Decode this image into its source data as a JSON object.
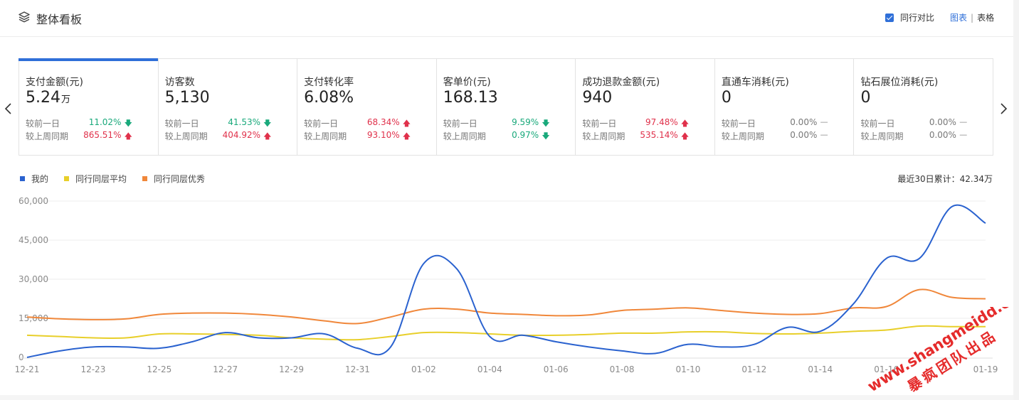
{
  "header": {
    "title": "整体看板",
    "compare_label": "同行对比",
    "view_chart": "图表",
    "view_sep": "|",
    "view_table": "表格"
  },
  "metrics": [
    {
      "name": "支付金额(元)",
      "value": "5.24",
      "unit": "万",
      "row1_label": "较前一日",
      "row1_pct": "11.02%",
      "row1_dir": "down",
      "row2_label": "较上周同期",
      "row2_pct": "865.51%",
      "row2_dir": "up"
    },
    {
      "name": "访客数",
      "value": "5,130",
      "unit": "",
      "row1_label": "较前一日",
      "row1_pct": "41.53%",
      "row1_dir": "down",
      "row2_label": "较上周同期",
      "row2_pct": "404.92%",
      "row2_dir": "up"
    },
    {
      "name": "支付转化率",
      "value": "6.08%",
      "unit": "",
      "row1_label": "较前一日",
      "row1_pct": "68.34%",
      "row1_dir": "up",
      "row2_label": "较上周同期",
      "row2_pct": "93.10%",
      "row2_dir": "up"
    },
    {
      "name": "客单价(元)",
      "value": "168.13",
      "unit": "",
      "row1_label": "较前一日",
      "row1_pct": "9.59%",
      "row1_dir": "down",
      "row2_label": "较上周同期",
      "row2_pct": "0.97%",
      "row2_dir": "down"
    },
    {
      "name": "成功退款金额(元)",
      "value": "940",
      "unit": "",
      "row1_label": "较前一日",
      "row1_pct": "97.48%",
      "row1_dir": "up",
      "row2_label": "较上周同期",
      "row2_pct": "535.14%",
      "row2_dir": "up"
    },
    {
      "name": "直通车消耗(元)",
      "value": "0",
      "unit": "",
      "row1_label": "较前一日",
      "row1_pct": "0.00%",
      "row1_dir": "flat",
      "row2_label": "较上周同期",
      "row2_pct": "0.00%",
      "row2_dir": "flat"
    },
    {
      "name": "钻石展位消耗(元)",
      "value": "0",
      "unit": "",
      "row1_label": "较前一日",
      "row1_pct": "0.00%",
      "row1_dir": "flat",
      "row2_label": "较上周同期",
      "row2_pct": "0.00%",
      "row2_dir": "flat"
    }
  ],
  "indicator_glyphs": {
    "up": "🡅",
    "down": "🡇",
    "flat": "—"
  },
  "colors": {
    "accent": "#2f6fd8",
    "up": "#e0314b",
    "down": "#19a97b",
    "mine": "#2a62cf",
    "peer_avg": "#e8cf2a",
    "peer_top": "#f0873a"
  },
  "summary": "最近30日累计：42.34万",
  "watermark": {
    "line1": "www.shangmeidd.com",
    "line2": "暴疯团队出品"
  },
  "chart_data": {
    "type": "line",
    "title": "",
    "xlabel": "",
    "ylabel": "",
    "ylim": [
      0,
      60000
    ],
    "yticks": [
      0,
      15000,
      30000,
      45000,
      60000
    ],
    "ytick_labels": [
      "0",
      "15,000",
      "30,000",
      "45,000",
      "60,000"
    ],
    "grid": true,
    "legend_position": "top-left",
    "x": [
      "12-21",
      "12-22",
      "12-23",
      "12-24",
      "12-25",
      "12-26",
      "12-27",
      "12-28",
      "12-29",
      "12-30",
      "12-31",
      "01-01",
      "01-02",
      "01-03",
      "01-04",
      "01-05",
      "01-06",
      "01-07",
      "01-08",
      "01-09",
      "01-10",
      "01-11",
      "01-12",
      "01-13",
      "01-14",
      "01-15",
      "01-16",
      "01-17",
      "01-18",
      "01-19"
    ],
    "xtick_labels": [
      "12-21",
      "12-23",
      "12-25",
      "12-27",
      "12-29",
      "12-31",
      "01-02",
      "01-04",
      "01-06",
      "01-08",
      "01-10",
      "01-12",
      "01-14",
      "01-16",
      "01-19"
    ],
    "series": [
      {
        "name": "我的",
        "color": "#2a62cf",
        "values": [
          0,
          2500,
          4000,
          4000,
          3500,
          6000,
          9500,
          7500,
          7500,
          9000,
          3500,
          4000,
          36000,
          34000,
          8000,
          8500,
          6000,
          4000,
          2500,
          1500,
          5000,
          4000,
          5000,
          11500,
          10000,
          20500,
          38000,
          38000,
          58000,
          51500
        ]
      },
      {
        "name": "同行同层平均",
        "color": "#e8cf2a",
        "values": [
          8500,
          8000,
          7500,
          7500,
          9000,
          9000,
          8800,
          8500,
          7500,
          7000,
          6800,
          8000,
          9500,
          9500,
          9000,
          8500,
          8500,
          8800,
          9300,
          9300,
          9800,
          9800,
          9200,
          9000,
          9300,
          10000,
          10500,
          12000,
          11800,
          11800
        ]
      },
      {
        "name": "同行同层优秀",
        "color": "#f0873a",
        "values": [
          15500,
          14800,
          14500,
          14800,
          16500,
          17000,
          17000,
          16500,
          15500,
          14000,
          13000,
          15500,
          18500,
          18500,
          17000,
          16500,
          16000,
          16300,
          18000,
          18500,
          19000,
          18000,
          17000,
          16500,
          16800,
          19000,
          19500,
          26000,
          23000,
          22500
        ]
      }
    ]
  }
}
